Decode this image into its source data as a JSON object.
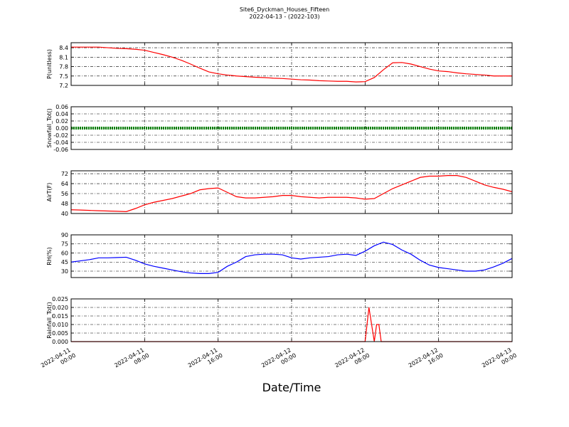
{
  "title": "Site6_Dyckman_Houses_Fifteen",
  "subtitle": "2022-04-13 - (2022-103)",
  "xlabel": "Date/Time",
  "xlim": [
    "2022-04-11 00:00",
    "2022-04-13 00:00"
  ],
  "xticks": [
    "2022-04-11 00:00",
    "2022-04-11 08:00",
    "2022-04-11 16:00",
    "2022-04-12 00:00",
    "2022-04-12 08:00",
    "2022-04-12 16:00",
    "2022-04-13 00:00"
  ],
  "chart_data": [
    {
      "type": "line",
      "ylabel": "P(unitless)",
      "color": "#ff0000",
      "ylim": [
        7.2,
        8.56
      ],
      "yticks": [
        7.2,
        7.5,
        7.8,
        8.1,
        8.4
      ],
      "grid": true,
      "x": [
        "2022-04-11 00:00",
        "2022-04-11 01:00",
        "2022-04-11 02:00",
        "2022-04-11 03:00",
        "2022-04-11 04:00",
        "2022-04-11 05:00",
        "2022-04-11 06:00",
        "2022-04-11 07:00",
        "2022-04-11 08:00",
        "2022-04-11 09:00",
        "2022-04-11 10:00",
        "2022-04-11 11:00",
        "2022-04-11 12:00",
        "2022-04-11 13:00",
        "2022-04-11 14:00",
        "2022-04-11 15:00",
        "2022-04-11 16:00",
        "2022-04-11 17:00",
        "2022-04-11 18:00",
        "2022-04-11 19:00",
        "2022-04-11 20:00",
        "2022-04-11 21:00",
        "2022-04-11 22:00",
        "2022-04-11 23:00",
        "2022-04-12 00:00",
        "2022-04-12 01:00",
        "2022-04-12 02:00",
        "2022-04-12 03:00",
        "2022-04-12 04:00",
        "2022-04-12 05:00",
        "2022-04-12 06:00",
        "2022-04-12 07:00",
        "2022-04-12 08:00",
        "2022-04-12 09:00",
        "2022-04-12 10:00",
        "2022-04-12 11:00",
        "2022-04-12 12:00",
        "2022-04-12 13:00",
        "2022-04-12 14:00",
        "2022-04-12 15:00",
        "2022-04-12 16:00",
        "2022-04-12 17:00",
        "2022-04-12 18:00",
        "2022-04-12 19:00",
        "2022-04-12 20:00",
        "2022-04-12 21:00",
        "2022-04-12 22:00",
        "2022-04-12 23:00",
        "2022-04-13 00:00"
      ],
      "values": [
        8.42,
        8.42,
        8.42,
        8.42,
        8.4,
        8.38,
        8.37,
        8.35,
        8.32,
        8.25,
        8.18,
        8.1,
        8.0,
        7.88,
        7.75,
        7.63,
        7.57,
        7.53,
        7.5,
        7.48,
        7.46,
        7.45,
        7.43,
        7.42,
        7.4,
        7.38,
        7.37,
        7.35,
        7.34,
        7.33,
        7.33,
        7.31,
        7.32,
        7.45,
        7.7,
        7.92,
        7.93,
        7.88,
        7.8,
        7.72,
        7.66,
        7.64,
        7.6,
        7.57,
        7.55,
        7.53,
        7.5,
        7.5,
        7.5
      ]
    },
    {
      "type": "line",
      "ylabel": "Snowfall_Tot()",
      "color": "#008000",
      "ylim": [
        -0.06,
        0.06
      ],
      "yticks": [
        -0.06,
        -0.04,
        -0.02,
        {
          "value": 0,
          "label": "0.00"
        },
        0.02,
        0.04,
        0.06
      ],
      "grid": true,
      "x": [
        "2022-04-11 00:00",
        "2022-04-11 01:00",
        "2022-04-11 02:00",
        "2022-04-11 03:00",
        "2022-04-11 04:00",
        "2022-04-11 05:00",
        "2022-04-11 06:00",
        "2022-04-11 07:00",
        "2022-04-11 08:00",
        "2022-04-11 09:00",
        "2022-04-11 10:00",
        "2022-04-11 11:00",
        "2022-04-11 12:00",
        "2022-04-11 13:00",
        "2022-04-11 14:00",
        "2022-04-11 15:00",
        "2022-04-11 16:00",
        "2022-04-11 17:00",
        "2022-04-11 18:00",
        "2022-04-11 19:00",
        "2022-04-11 20:00",
        "2022-04-11 21:00",
        "2022-04-11 22:00",
        "2022-04-11 23:00",
        "2022-04-12 00:00",
        "2022-04-12 01:00",
        "2022-04-12 02:00",
        "2022-04-12 03:00",
        "2022-04-12 04:00",
        "2022-04-12 05:00",
        "2022-04-12 06:00",
        "2022-04-12 07:00",
        "2022-04-12 08:00",
        "2022-04-12 09:00",
        "2022-04-12 10:00",
        "2022-04-12 11:00",
        "2022-04-12 12:00",
        "2022-04-12 13:00",
        "2022-04-12 14:00",
        "2022-04-12 15:00",
        "2022-04-12 16:00",
        "2022-04-12 17:00",
        "2022-04-12 18:00",
        "2022-04-12 19:00",
        "2022-04-12 20:00",
        "2022-04-12 21:00",
        "2022-04-12 22:00",
        "2022-04-12 23:00",
        "2022-04-13 00:00"
      ],
      "values": [
        0,
        0,
        0,
        0,
        0,
        0,
        0,
        0,
        0,
        0,
        0,
        0,
        0,
        0,
        0,
        0,
        0,
        0,
        0,
        0,
        0,
        0,
        0,
        0,
        0,
        0,
        0,
        0,
        0,
        0,
        0,
        0,
        0,
        0,
        0,
        0,
        0,
        0,
        0,
        0,
        0,
        0,
        0,
        0,
        0,
        0,
        0,
        0,
        0
      ]
    },
    {
      "type": "line",
      "ylabel": "AirT(F)",
      "color": "#ff0000",
      "ylim": [
        40,
        74.3
      ],
      "yticks": [
        40,
        48,
        56,
        64,
        72
      ],
      "grid": true,
      "x": [
        "2022-04-11 00:00",
        "2022-04-11 01:00",
        "2022-04-11 02:00",
        "2022-04-11 03:00",
        "2022-04-11 04:00",
        "2022-04-11 05:00",
        "2022-04-11 06:00",
        "2022-04-11 07:00",
        "2022-04-11 08:00",
        "2022-04-11 09:00",
        "2022-04-11 10:00",
        "2022-04-11 11:00",
        "2022-04-11 12:00",
        "2022-04-11 13:00",
        "2022-04-11 14:00",
        "2022-04-11 15:00",
        "2022-04-11 16:00",
        "2022-04-11 17:00",
        "2022-04-11 18:00",
        "2022-04-11 19:00",
        "2022-04-11 20:00",
        "2022-04-11 21:00",
        "2022-04-11 22:00",
        "2022-04-11 23:00",
        "2022-04-12 00:00",
        "2022-04-12 01:00",
        "2022-04-12 02:00",
        "2022-04-12 03:00",
        "2022-04-12 04:00",
        "2022-04-12 05:00",
        "2022-04-12 06:00",
        "2022-04-12 07:00",
        "2022-04-12 08:00",
        "2022-04-12 09:00",
        "2022-04-12 10:00",
        "2022-04-12 11:00",
        "2022-04-12 12:00",
        "2022-04-12 13:00",
        "2022-04-12 14:00",
        "2022-04-12 15:00",
        "2022-04-12 16:00",
        "2022-04-12 17:00",
        "2022-04-12 18:00",
        "2022-04-12 19:00",
        "2022-04-12 20:00",
        "2022-04-12 21:00",
        "2022-04-12 22:00",
        "2022-04-12 23:00",
        "2022-04-13 00:00"
      ],
      "values": [
        43,
        42.8,
        42.5,
        42.2,
        42,
        41.8,
        41.5,
        44,
        47,
        49,
        50.5,
        52,
        54,
        56,
        59,
        60,
        60.5,
        57,
        53.5,
        52.5,
        52.5,
        53,
        53.5,
        54.5,
        54.5,
        53.5,
        53,
        52.5,
        53,
        53,
        53,
        52.5,
        51.5,
        52,
        56,
        60,
        63,
        66,
        69,
        70,
        70,
        70.5,
        70.5,
        69,
        66,
        63,
        61,
        59.5,
        57.5
      ]
    },
    {
      "type": "line",
      "ylabel": "RH(%)",
      "color": "#0000ff",
      "ylim": [
        19.4,
        90
      ],
      "yticks": [
        30,
        45,
        60,
        75,
        90
      ],
      "grid": true,
      "x": [
        "2022-04-11 00:00",
        "2022-04-11 01:00",
        "2022-04-11 02:00",
        "2022-04-11 03:00",
        "2022-04-11 04:00",
        "2022-04-11 05:00",
        "2022-04-11 06:00",
        "2022-04-11 07:00",
        "2022-04-11 08:00",
        "2022-04-11 09:00",
        "2022-04-11 10:00",
        "2022-04-11 11:00",
        "2022-04-11 12:00",
        "2022-04-11 13:00",
        "2022-04-11 14:00",
        "2022-04-11 15:00",
        "2022-04-11 16:00",
        "2022-04-11 17:00",
        "2022-04-11 18:00",
        "2022-04-11 19:00",
        "2022-04-11 20:00",
        "2022-04-11 21:00",
        "2022-04-11 22:00",
        "2022-04-11 23:00",
        "2022-04-12 00:00",
        "2022-04-12 01:00",
        "2022-04-12 02:00",
        "2022-04-12 03:00",
        "2022-04-12 04:00",
        "2022-04-12 05:00",
        "2022-04-12 06:00",
        "2022-04-12 07:00",
        "2022-04-12 08:00",
        "2022-04-12 09:00",
        "2022-04-12 10:00",
        "2022-04-12 11:00",
        "2022-04-12 12:00",
        "2022-04-12 13:00",
        "2022-04-12 14:00",
        "2022-04-12 15:00",
        "2022-04-12 16:00",
        "2022-04-12 17:00",
        "2022-04-12 18:00",
        "2022-04-12 19:00",
        "2022-04-12 20:00",
        "2022-04-12 21:00",
        "2022-04-12 22:00",
        "2022-04-12 23:00",
        "2022-04-13 00:00"
      ],
      "values": [
        45,
        47,
        49,
        52,
        52,
        52.5,
        53,
        48,
        42,
        38,
        35,
        32,
        29,
        27,
        26,
        26,
        28,
        38,
        45,
        54,
        57,
        58,
        58,
        57,
        52,
        50,
        52,
        53,
        54,
        57,
        58,
        56,
        63,
        72,
        78,
        74,
        65,
        58,
        48,
        40,
        36,
        34,
        32,
        30,
        30,
        32,
        37,
        43,
        51
      ]
    },
    {
      "type": "line",
      "ylabel": "Rainfall_Tot()",
      "color": "#ff0000",
      "ylim": [
        0,
        0.025
      ],
      "yticks": [
        {
          "value": 0,
          "label": "0.000"
        },
        0.005,
        {
          "value": 0.01,
          "label": "0.010"
        },
        0.015,
        {
          "value": 0.02,
          "label": "0.020"
        },
        0.025
      ],
      "grid": true,
      "x": [
        "2022-04-11 00:00",
        "2022-04-12 08:00",
        "2022-04-12 08:25",
        "2022-04-12 09:00",
        "2022-04-12 09:15",
        "2022-04-12 09:30",
        "2022-04-12 09:45",
        "2022-04-13 00:00"
      ],
      "values": [
        0,
        0,
        0.02,
        0,
        0.01,
        0.01,
        0,
        0
      ]
    }
  ]
}
